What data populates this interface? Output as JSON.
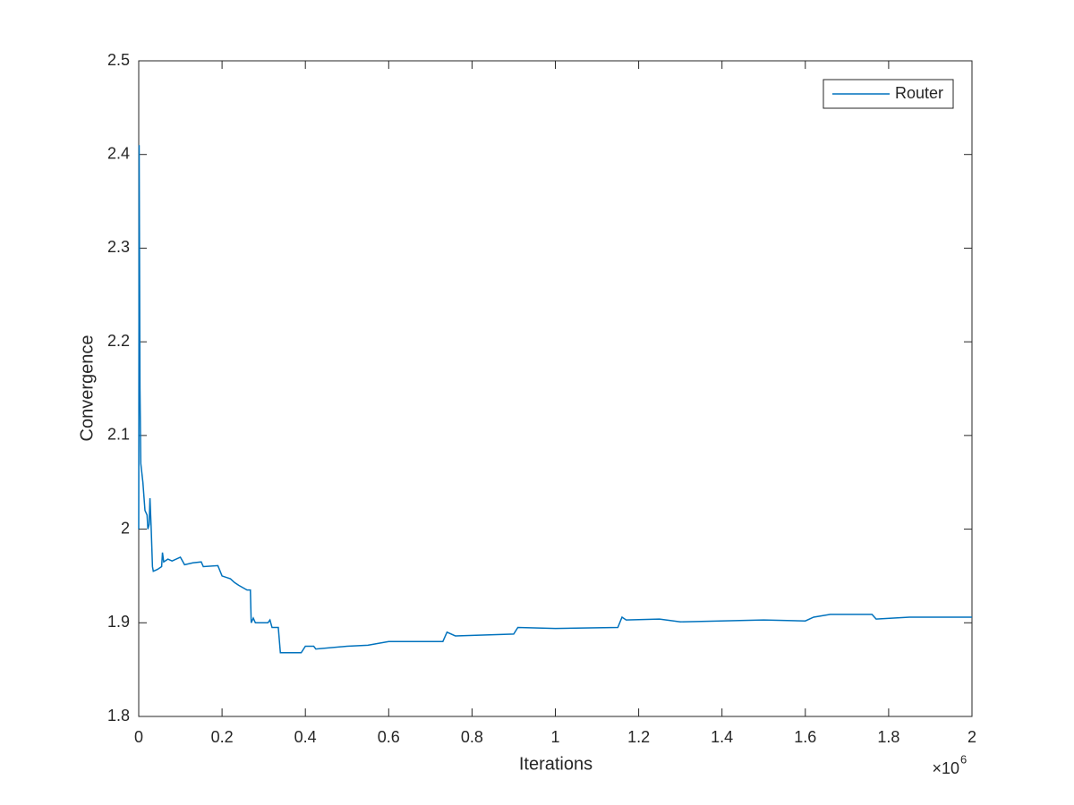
{
  "chart_data": {
    "type": "line",
    "xlabel": "Iterations",
    "ylabel": "Convergence",
    "x_multiplier": {
      "base": "×10",
      "exponent": "6"
    },
    "x": [
      0,
      0.001,
      0.003,
      0.005,
      0.01,
      0.015,
      0.02,
      0.022,
      0.025,
      0.027,
      0.03,
      0.033,
      0.035,
      0.045,
      0.055,
      0.057,
      0.06,
      0.07,
      0.08,
      0.1,
      0.105,
      0.11,
      0.13,
      0.15,
      0.155,
      0.19,
      0.2,
      0.22,
      0.23,
      0.24,
      0.26,
      0.268,
      0.27,
      0.275,
      0.28,
      0.31,
      0.315,
      0.32,
      0.335,
      0.34,
      0.39,
      0.4,
      0.42,
      0.425,
      0.5,
      0.55,
      0.6,
      0.73,
      0.74,
      0.76,
      0.9,
      0.91,
      1.0,
      1.15,
      1.16,
      1.17,
      1.25,
      1.3,
      1.5,
      1.6,
      1.62,
      1.66,
      1.76,
      1.77,
      1.85,
      2.0
    ],
    "series": [
      {
        "name": "Router",
        "color": "#0072bd",
        "values": [
          2.0,
          2.41,
          2.15,
          2.07,
          2.05,
          2.02,
          2.015,
          2.0,
          2.005,
          2.033,
          2.0,
          1.96,
          1.955,
          1.957,
          1.96,
          1.975,
          1.965,
          1.968,
          1.966,
          1.97,
          1.966,
          1.962,
          1.964,
          1.965,
          1.96,
          1.961,
          1.95,
          1.947,
          1.943,
          1.94,
          1.935,
          1.935,
          1.9,
          1.905,
          1.9,
          1.9,
          1.903,
          1.895,
          1.895,
          1.868,
          1.868,
          1.875,
          1.875,
          1.872,
          1.875,
          1.876,
          1.88,
          1.88,
          1.89,
          1.886,
          1.888,
          1.895,
          1.894,
          1.895,
          1.906,
          1.903,
          1.904,
          1.901,
          1.903,
          1.902,
          1.906,
          1.909,
          1.909,
          1.904,
          1.906,
          1.906
        ]
      }
    ],
    "xlim": [
      0,
      2
    ],
    "ylim": [
      1.8,
      2.5
    ],
    "xticks": [
      0,
      0.2,
      0.4,
      0.6,
      0.8,
      1,
      1.2,
      1.4,
      1.6,
      1.8,
      2
    ],
    "yticks": [
      1.8,
      1.9,
      2,
      2.1,
      2.2,
      2.3,
      2.4,
      2.5
    ],
    "legend": "upper right"
  }
}
